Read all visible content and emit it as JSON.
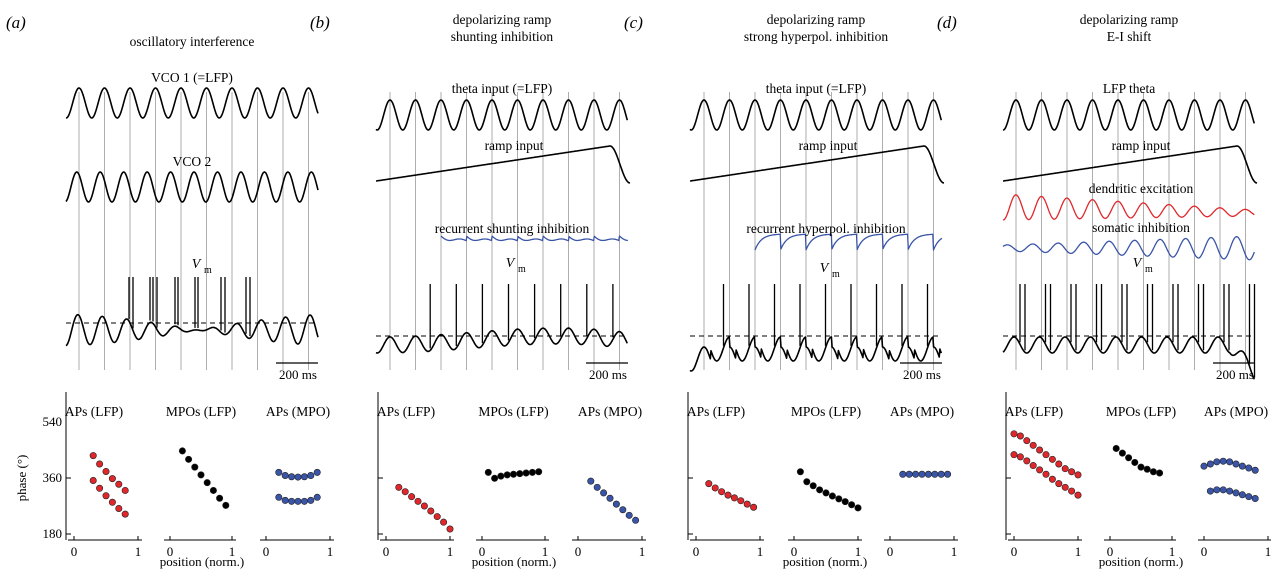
{
  "scale_bar_label": "200 ms",
  "phase_axis": {
    "label": "phase (°)",
    "ticks": [
      "540",
      "360",
      "180"
    ],
    "range": [
      180,
      540
    ]
  },
  "position_axis": {
    "label": "position (norm.)",
    "ticks": [
      "0",
      "1"
    ],
    "range": [
      0,
      1
    ]
  },
  "vm_label": {
    "main": "V",
    "sub": "m"
  },
  "subplot_titles": [
    "APs (LFP)",
    "MPOs (LFP)",
    "APs (MPO)"
  ],
  "colors": {
    "trace": "#000000",
    "red": "#e0282c",
    "blue": "#3a55a8",
    "grid": "#9a9a9a"
  },
  "panels": [
    {
      "id": "(a)",
      "title_lines": [
        "oscillatory interference"
      ],
      "traces": [
        {
          "label": "VCO 1 (=LFP)"
        },
        {
          "label": "VCO 2"
        }
      ]
    },
    {
      "id": "(b)",
      "title_lines": [
        "depolarizing ramp",
        "shunting inhibition"
      ],
      "traces": [
        {
          "label": "theta input (=LFP)"
        },
        {
          "label": "ramp input"
        },
        {
          "label": "recurrent shunting inhibition"
        }
      ]
    },
    {
      "id": "(c)",
      "title_lines": [
        "depolarizing ramp",
        "strong hyperpol. inhibition"
      ],
      "traces": [
        {
          "label": "theta input (=LFP)"
        },
        {
          "label": "ramp input"
        },
        {
          "label": "recurrent hyperpol. inhibition"
        }
      ]
    },
    {
      "id": "(d)",
      "title_lines": [
        "depolarizing ramp",
        "E-I shift"
      ],
      "traces": [
        {
          "label": "LFP theta"
        },
        {
          "label": "ramp input"
        },
        {
          "label": "dendritic excitation"
        },
        {
          "label": "somatic inhibition"
        }
      ]
    }
  ],
  "chart_data": [
    {
      "type": "scatter",
      "panel": "(a)",
      "subplots": [
        {
          "title": "APs (LFP)",
          "color": "red",
          "series": [
            {
              "x": [
                0.3,
                0.4,
                0.5,
                0.6,
                0.7,
                0.8
              ],
              "y": [
                432,
                405,
                381,
                358,
                340,
                320
              ]
            },
            {
              "x": [
                0.3,
                0.4,
                0.5,
                0.6,
                0.7,
                0.8
              ],
              "y": [
                352,
                327,
                303,
                282,
                262,
                244
              ]
            }
          ]
        },
        {
          "title": "MPOs (LFP)",
          "color": "black",
          "series": [
            {
              "x": [
                0.2,
                0.3,
                0.4,
                0.5,
                0.6,
                0.7,
                0.8,
                0.9
              ],
              "y": [
                447,
                420,
                395,
                370,
                345,
                320,
                295,
                272
              ]
            }
          ]
        },
        {
          "title": "APs (MPO)",
          "color": "blue",
          "series": [
            {
              "x": [
                0.2,
                0.3,
                0.4,
                0.5,
                0.6,
                0.7,
                0.8
              ],
              "y": [
                378,
                368,
                364,
                363,
                364,
                368,
                378
              ]
            },
            {
              "x": [
                0.2,
                0.3,
                0.4,
                0.5,
                0.6,
                0.7,
                0.8
              ],
              "y": [
                298,
                288,
                285,
                285,
                285,
                288,
                298
              ]
            }
          ]
        }
      ]
    },
    {
      "type": "scatter",
      "panel": "(b)",
      "subplots": [
        {
          "title": "APs (LFP)",
          "color": "red",
          "series": [
            {
              "x": [
                0.2,
                0.3,
                0.4,
                0.5,
                0.6,
                0.7,
                0.8,
                0.9,
                1.0
              ],
              "y": [
                330,
                316,
                300,
                285,
                270,
                254,
                236,
                218,
                196
              ]
            }
          ]
        },
        {
          "title": "MPOs (LFP)",
          "color": "black",
          "series": [
            {
              "x": [
                0.1,
                0.2,
                0.3,
                0.4,
                0.5,
                0.6,
                0.7,
                0.8,
                0.9
              ],
              "y": [
                378,
                359,
                366,
                370,
                372,
                374,
                376,
                378,
                380
              ]
            }
          ]
        },
        {
          "title": "APs (MPO)",
          "color": "blue",
          "series": [
            {
              "x": [
                0.2,
                0.3,
                0.4,
                0.5,
                0.6,
                0.7,
                0.8,
                0.9
              ],
              "y": [
                350,
                330,
                312,
                295,
                276,
                258,
                240,
                224
              ]
            }
          ]
        }
      ]
    },
    {
      "type": "scatter",
      "panel": "(c)",
      "subplots": [
        {
          "title": "APs (LFP)",
          "color": "red",
          "series": [
            {
              "x": [
                0.2,
                0.3,
                0.4,
                0.5,
                0.6,
                0.7,
                0.8,
                0.9
              ],
              "y": [
                342,
                328,
                316,
                305,
                296,
                287,
                276,
                266
              ]
            }
          ]
        },
        {
          "title": "MPOs (LFP)",
          "color": "black",
          "series": [
            {
              "x": [
                0.1,
                0.2,
                0.3,
                0.4,
                0.5,
                0.6,
                0.7,
                0.8,
                0.9,
                1.0
              ],
              "y": [
                380,
                348,
                335,
                322,
                312,
                302,
                293,
                284,
                274,
                264
              ]
            }
          ]
        },
        {
          "title": "APs (MPO)",
          "color": "blue",
          "series": [
            {
              "x": [
                0.2,
                0.3,
                0.4,
                0.5,
                0.6,
                0.7,
                0.8,
                0.9
              ],
              "y": [
                372,
                372,
                372,
                372,
                372,
                372,
                372,
                372
              ]
            }
          ]
        }
      ]
    },
    {
      "type": "scatter",
      "panel": "(d)",
      "subplots": [
        {
          "title": "APs (LFP)",
          "color": "red",
          "series": [
            {
              "x": [
                0,
                0.1,
                0.2,
                0.3,
                0.4,
                0.5,
                0.6,
                0.7,
                0.8,
                0.9,
                1.0
              ],
              "y": [
                502,
                495,
                480,
                465,
                450,
                435,
                420,
                405,
                390,
                380,
                370
              ]
            },
            {
              "x": [
                0,
                0.1,
                0.2,
                0.3,
                0.4,
                0.5,
                0.6,
                0.7,
                0.8,
                0.9,
                1.0
              ],
              "y": [
                435,
                428,
                415,
                400,
                386,
                372,
                356,
                342,
                330,
                318,
                305
              ]
            }
          ]
        },
        {
          "title": "MPOs (LFP)",
          "color": "black",
          "series": [
            {
              "x": [
                0.1,
                0.2,
                0.3,
                0.4,
                0.5,
                0.6,
                0.7,
                0.8
              ],
              "y": [
                455,
                440,
                425,
                410,
                395,
                388,
                380,
                376
              ]
            }
          ]
        },
        {
          "title": "APs (MPO)",
          "color": "blue",
          "series": [
            {
              "x": [
                0,
                0.1,
                0.2,
                0.3,
                0.4,
                0.5,
                0.6,
                0.7,
                0.8
              ],
              "y": [
                398,
                405,
                412,
                414,
                412,
                405,
                398,
                392,
                385
              ]
            },
            {
              "x": [
                0.1,
                0.2,
                0.3,
                0.4,
                0.5,
                0.6,
                0.7,
                0.8
              ],
              "y": [
                318,
                322,
                322,
                318,
                312,
                306,
                300,
                294
              ]
            }
          ]
        }
      ]
    }
  ]
}
